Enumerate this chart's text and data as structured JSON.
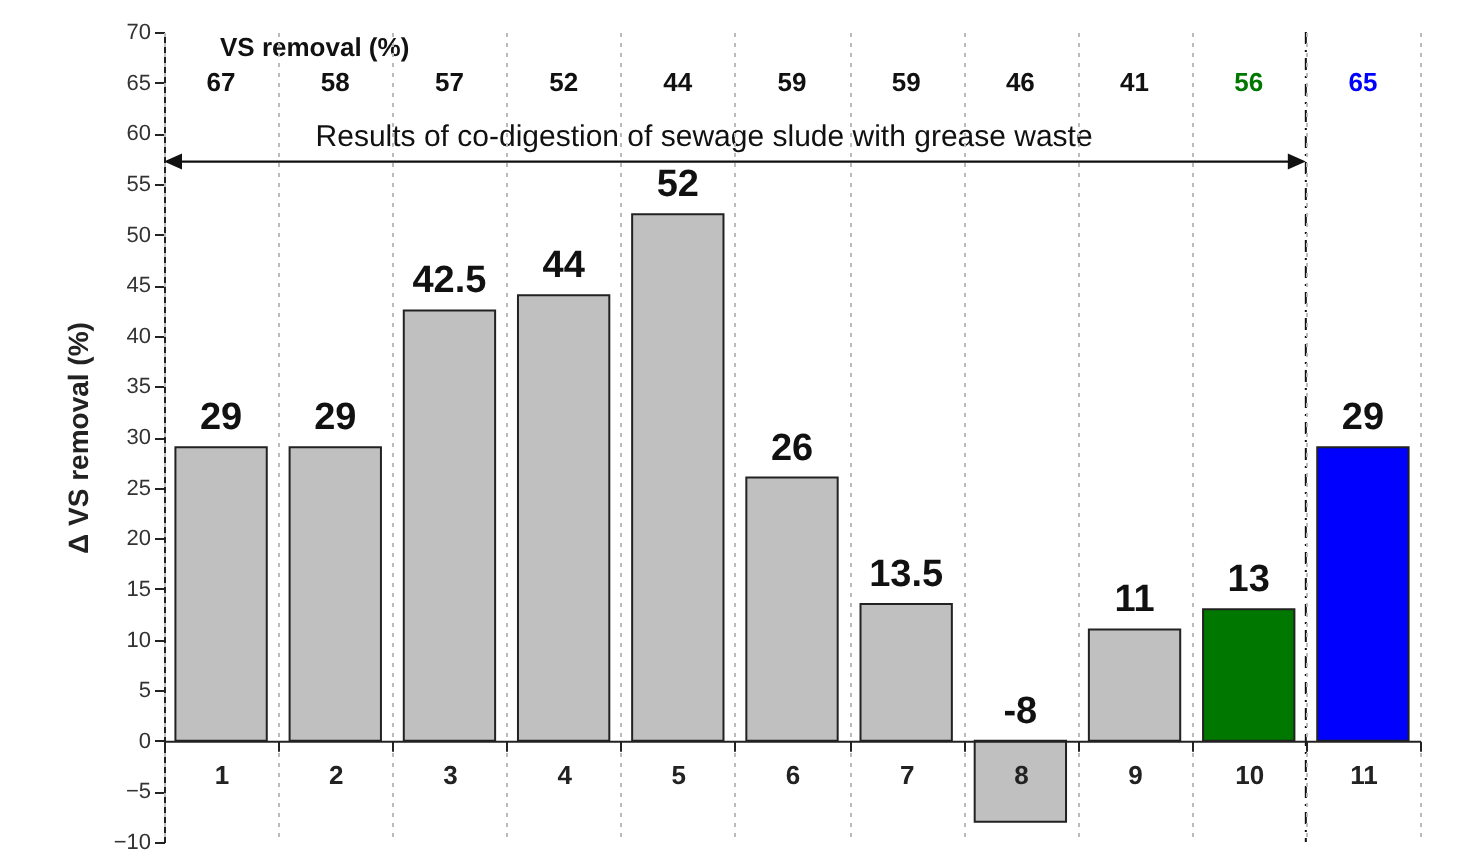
{
  "chart_data": {
    "type": "bar",
    "ylabel": "Δ VS removal (%)",
    "categories": [
      "1",
      "2",
      "3",
      "4",
      "5",
      "6",
      "7",
      "8",
      "9",
      "10",
      "11"
    ],
    "values": [
      29,
      29,
      42.5,
      44,
      52,
      26,
      13.5,
      -8,
      11,
      13,
      29
    ],
    "colors": [
      "#c0c0c0",
      "#c0c0c0",
      "#c0c0c0",
      "#c0c0c0",
      "#c0c0c0",
      "#c0c0c0",
      "#c0c0c0",
      "#c0c0c0",
      "#c0c0c0",
      "#007800",
      "#0000ff"
    ],
    "data_labels": true,
    "ylim": [
      -10,
      70
    ],
    "yticks": [
      -10,
      -5,
      0,
      5,
      10,
      15,
      20,
      25,
      30,
      35,
      40,
      45,
      50,
      55,
      60,
      65,
      70
    ],
    "grid": "x",
    "ref_lines": [
      {
        "axis": "x",
        "value": "10",
        "line_style": "dashdot"
      }
    ],
    "annotations": [
      "VS removal (%)",
      "67",
      "58",
      "57",
      "52",
      "44",
      "59",
      "59",
      "46",
      "41",
      "56",
      "65",
      "Results of co-digestion of sewage slude with grease waste"
    ]
  }
}
